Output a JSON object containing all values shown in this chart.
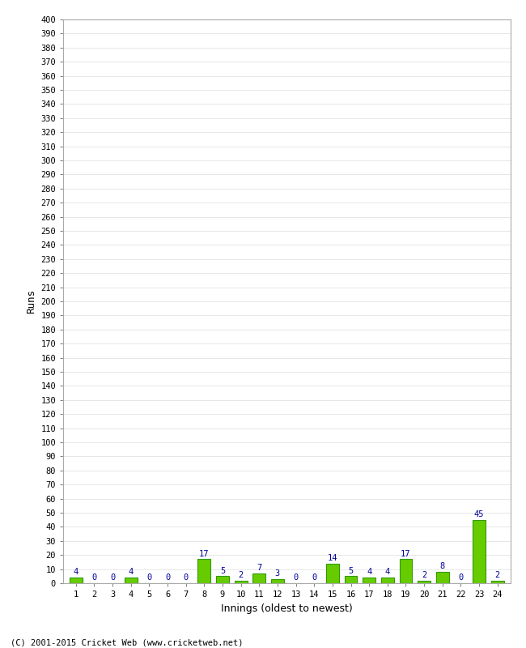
{
  "title": "",
  "xlabel": "Innings (oldest to newest)",
  "ylabel": "Runs",
  "categories": [
    1,
    2,
    3,
    4,
    5,
    6,
    7,
    8,
    9,
    10,
    11,
    12,
    13,
    14,
    15,
    16,
    17,
    18,
    19,
    20,
    21,
    22,
    23,
    24
  ],
  "values": [
    4,
    0,
    0,
    4,
    0,
    0,
    0,
    17,
    5,
    2,
    7,
    3,
    0,
    0,
    14,
    5,
    4,
    4,
    17,
    2,
    8,
    0,
    45,
    2
  ],
  "bar_color": "#66cc00",
  "bar_edge_color": "#339900",
  "label_color": "#000099",
  "ylim": [
    0,
    400
  ],
  "background_color": "#ffffff",
  "grid_color": "#dddddd",
  "footer": "(C) 2001-2015 Cricket Web (www.cricketweb.net)"
}
